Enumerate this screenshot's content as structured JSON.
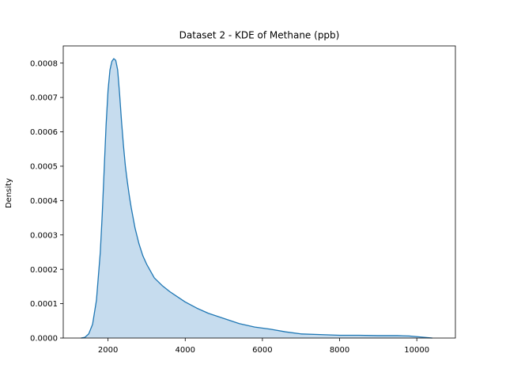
{
  "chart_data": {
    "type": "area",
    "title": "Dataset 2 - KDE of Methane (ppb)",
    "xlabel": "",
    "ylabel": "Density",
    "xlim": [
      840,
      11000
    ],
    "ylim": [
      0,
      0.00085
    ],
    "x_ticks": [
      2000,
      4000,
      6000,
      8000,
      10000
    ],
    "y_ticks": [
      0.0,
      0.0001,
      0.0002,
      0.0003,
      0.0004,
      0.0005,
      0.0006,
      0.0007,
      0.0008
    ],
    "x_tick_labels": [
      "2000",
      "4000",
      "6000",
      "8000",
      "10000"
    ],
    "y_tick_labels": [
      "0.0000",
      "0.0001",
      "0.0002",
      "0.0003",
      "0.0004",
      "0.0005",
      "0.0006",
      "0.0007",
      "0.0008"
    ],
    "grid": false,
    "colors": {
      "line": "#1f77b4",
      "fill": "#c6dcee"
    },
    "series": [
      {
        "x": [
          1300,
          1400,
          1500,
          1600,
          1700,
          1800,
          1850,
          1900,
          1950,
          2000,
          2050,
          2100,
          2150,
          2200,
          2250,
          2300,
          2350,
          2400,
          2450,
          2500,
          2550,
          2600,
          2700,
          2800,
          2900,
          3000,
          3200,
          3400,
          3600,
          3800,
          4000,
          4300,
          4600,
          5000,
          5400,
          5800,
          6200,
          6600,
          7000,
          7500,
          8000,
          8500,
          9000,
          9500,
          9800,
          10000,
          10200,
          10400
        ],
        "y": [
          0.0,
          2e-06,
          1.2e-05,
          4e-05,
          0.00011,
          0.00025,
          0.00036,
          0.00049,
          0.00062,
          0.00072,
          0.00078,
          0.000805,
          0.000813,
          0.000808,
          0.00078,
          0.00071,
          0.00063,
          0.00056,
          0.0005,
          0.000455,
          0.000415,
          0.00038,
          0.00032,
          0.000275,
          0.00024,
          0.000215,
          0.000175,
          0.000153,
          0.000135,
          0.00012,
          0.000105,
          8.7e-05,
          7.2e-05,
          5.7e-05,
          4.2e-05,
          3.2e-05,
          2.6e-05,
          1.8e-05,
          1.2e-05,
          1e-05,
          8e-06,
          8e-06,
          7e-06,
          7e-06,
          6e-06,
          4e-06,
          2e-06,
          0.0
        ]
      }
    ]
  }
}
